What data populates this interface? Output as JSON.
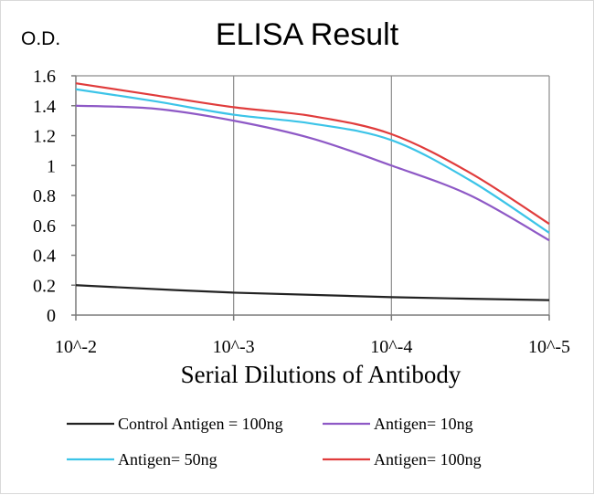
{
  "chart_data": {
    "type": "line",
    "title": "ELISA Result",
    "ylabel": "O.D.",
    "xlabel": "Serial  Dilutions  of Antibody",
    "x": [
      "10^-2",
      "10^-3",
      "10^-4",
      "10^-5"
    ],
    "ylim": [
      0,
      1.6
    ],
    "yticks": [
      "0",
      "0.2",
      "0.4",
      "0.6",
      "0.8",
      "1",
      "1.2",
      "1.4",
      "1.6"
    ],
    "grid": "vertical",
    "legend_position": "bottom",
    "series": [
      {
        "name": "Control Antigen = 100ng",
        "color": "#222222",
        "points": [
          [
            0,
            0.2
          ],
          [
            1,
            0.15
          ],
          [
            2,
            0.12
          ],
          [
            3,
            0.1
          ]
        ]
      },
      {
        "name": "Antigen= 10ng",
        "color": "#8e59c6",
        "points": [
          [
            0,
            1.4
          ],
          [
            0.5,
            1.38
          ],
          [
            1,
            1.3
          ],
          [
            1.5,
            1.18
          ],
          [
            2,
            1.0
          ],
          [
            2.5,
            0.8
          ],
          [
            3,
            0.5
          ]
        ]
      },
      {
        "name": "Antigen= 50ng",
        "color": "#3cc4e8",
        "points": [
          [
            0,
            1.51
          ],
          [
            0.5,
            1.43
          ],
          [
            1,
            1.34
          ],
          [
            1.5,
            1.28
          ],
          [
            2,
            1.17
          ],
          [
            2.5,
            0.9
          ],
          [
            3,
            0.55
          ]
        ]
      },
      {
        "name": "Antigen= 100ng",
        "color": "#e03c3c",
        "points": [
          [
            0,
            1.55
          ],
          [
            0.5,
            1.47
          ],
          [
            1,
            1.39
          ],
          [
            1.5,
            1.33
          ],
          [
            2,
            1.21
          ],
          [
            2.5,
            0.95
          ],
          [
            3,
            0.61
          ]
        ]
      }
    ]
  }
}
